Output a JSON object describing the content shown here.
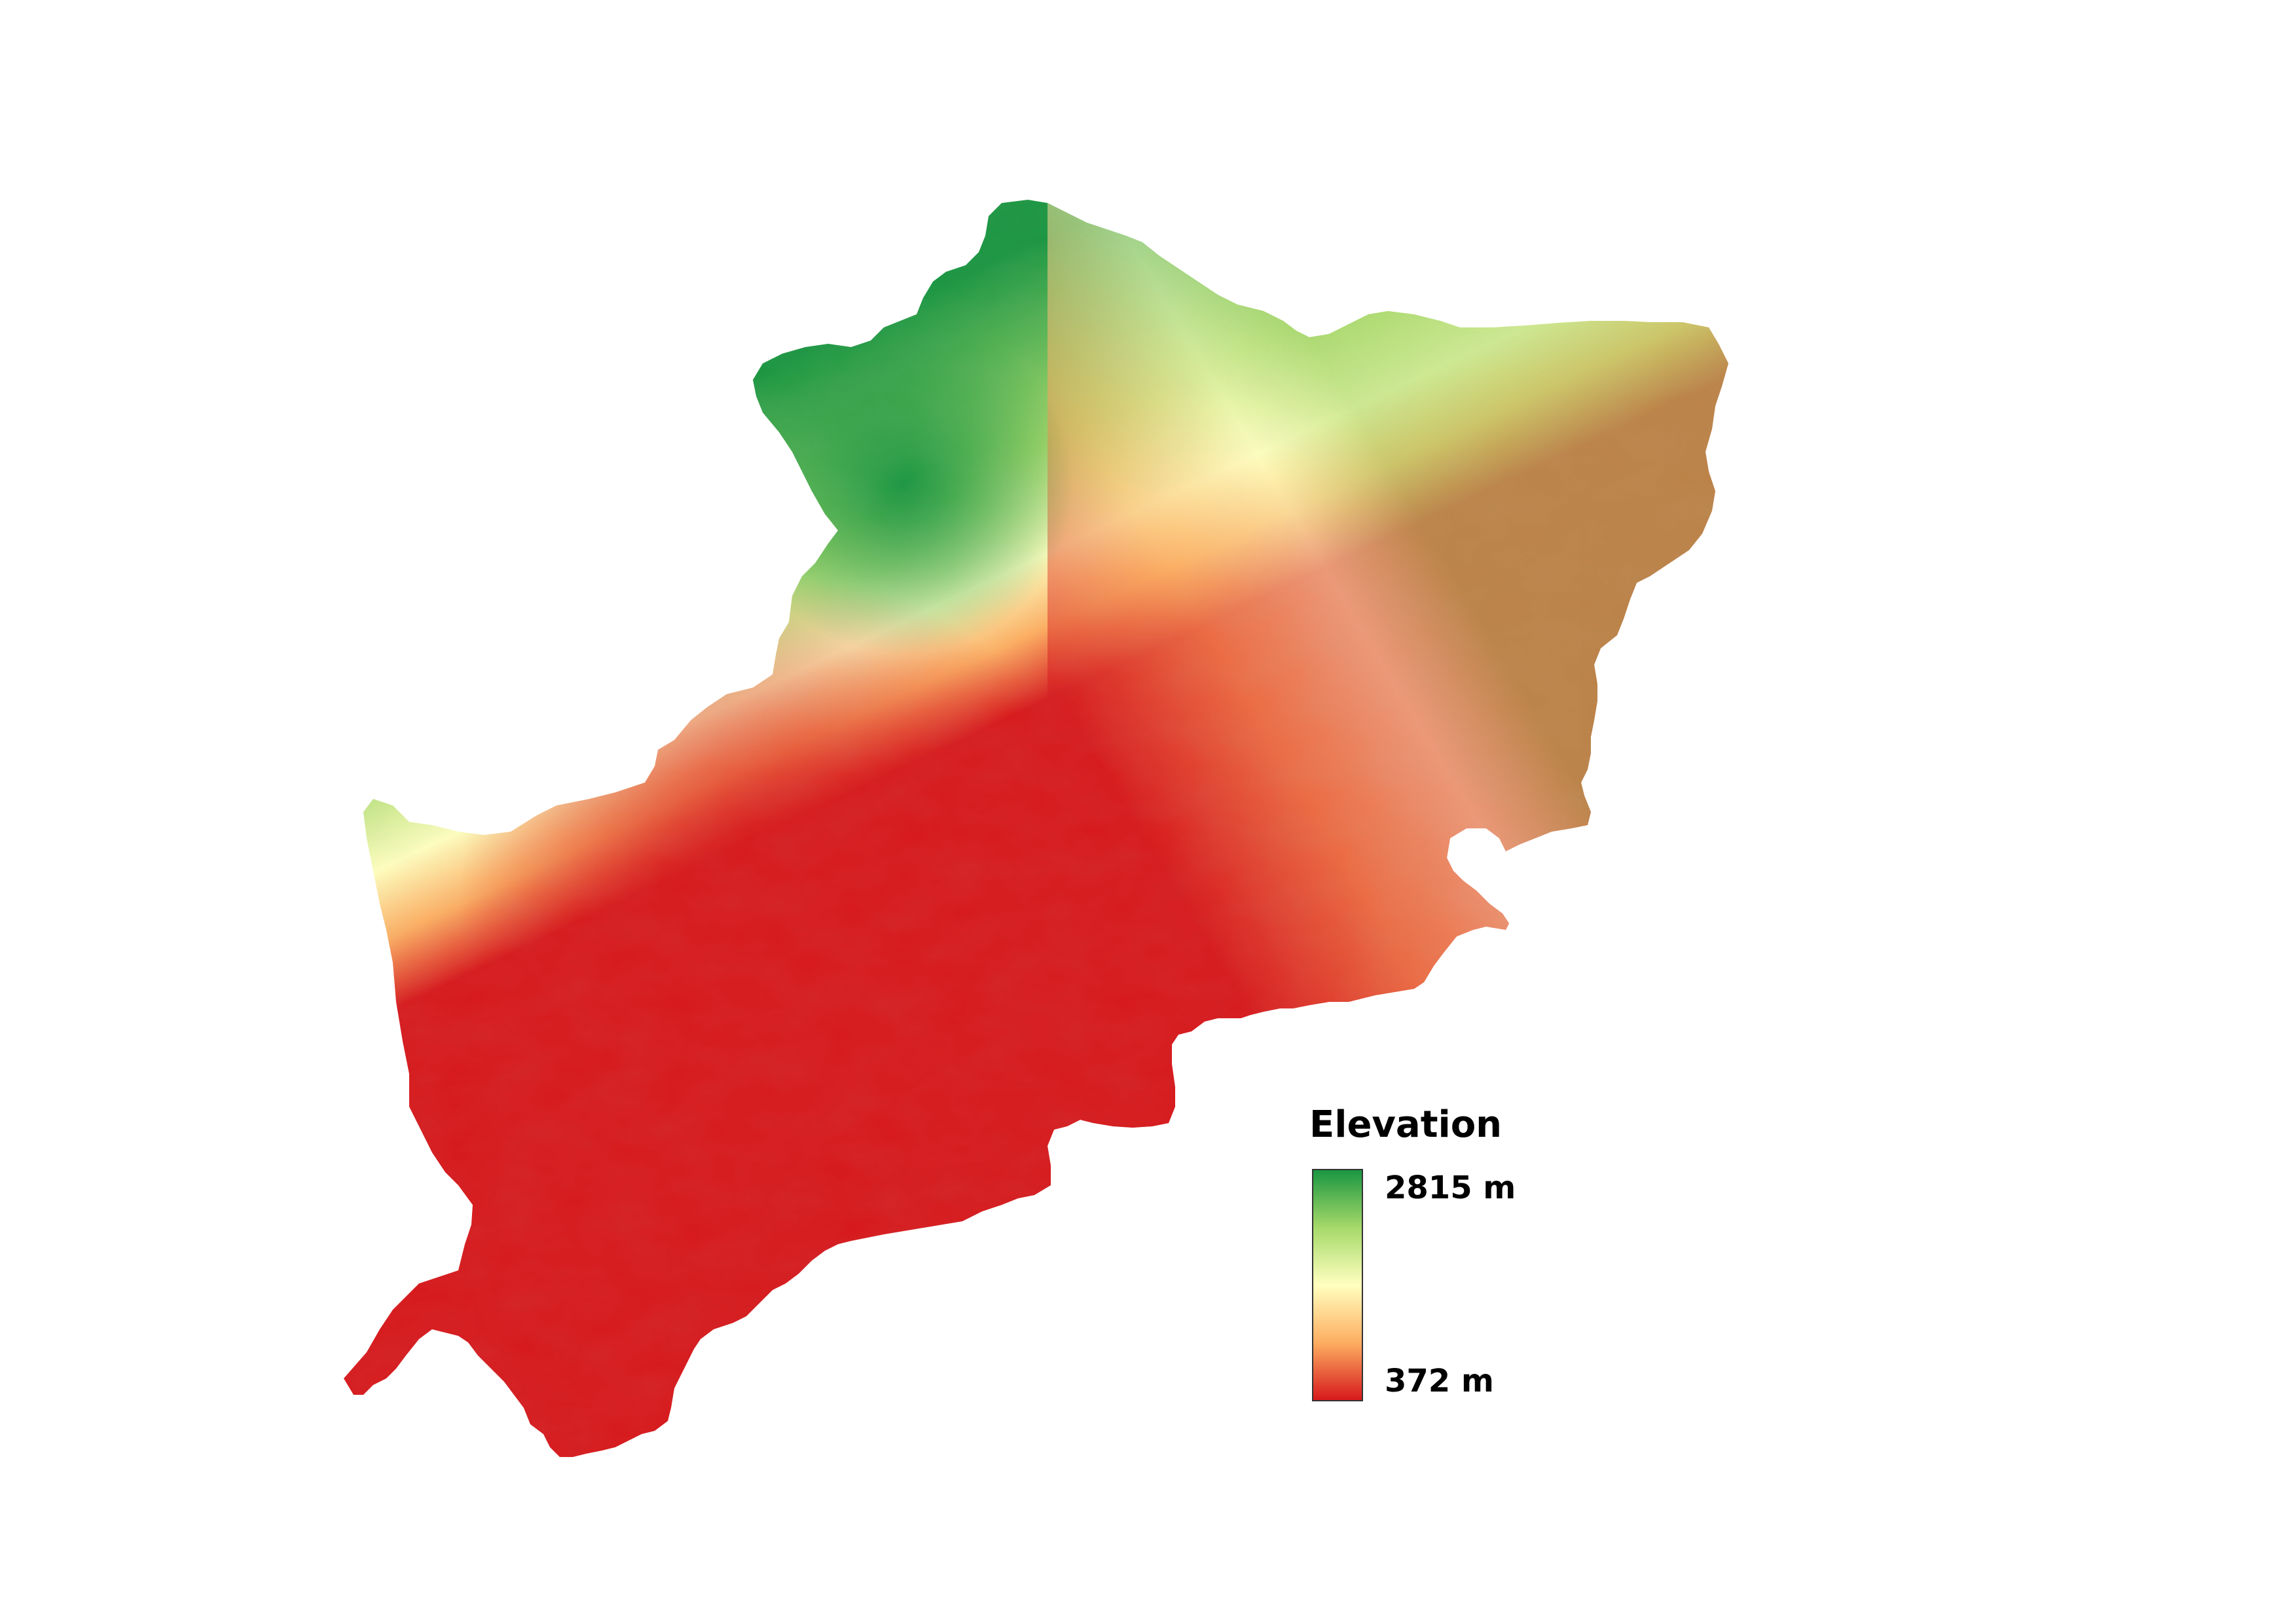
{
  "map": {
    "layer": "elevation-raster",
    "colors": {
      "low": "#d7191c",
      "low_mid": "#fdae61",
      "mid": "#ffffbf",
      "high_mid": "#a6d96a",
      "high": "#1a9641"
    }
  },
  "legend": {
    "title": "Elevation",
    "max_label": "2815 m",
    "min_label": "372 m",
    "max_value": 2815,
    "min_value": 372,
    "unit": "m"
  }
}
